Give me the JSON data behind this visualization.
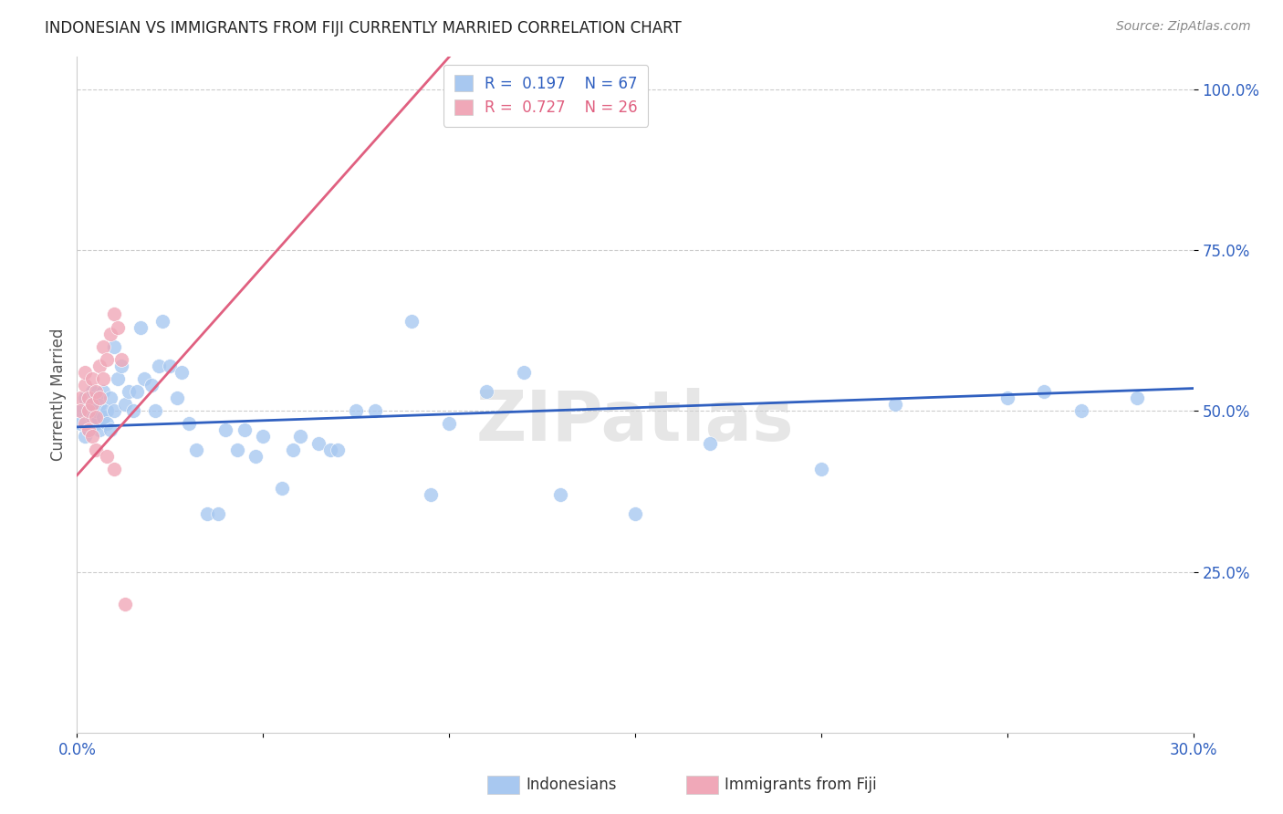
{
  "title": "INDONESIAN VS IMMIGRANTS FROM FIJI CURRENTLY MARRIED CORRELATION CHART",
  "source": "Source: ZipAtlas.com",
  "ylabel": "Currently Married",
  "xlabel_indonesians": "Indonesians",
  "xlabel_fiji": "Immigrants from Fiji",
  "xlim": [
    0.0,
    0.3
  ],
  "ylim": [
    0.0,
    1.05
  ],
  "yticks": [
    0.25,
    0.5,
    0.75,
    1.0
  ],
  "ytick_labels": [
    "25.0%",
    "50.0%",
    "75.0%",
    "100.0%"
  ],
  "xticks": [
    0.0,
    0.05,
    0.1,
    0.15,
    0.2,
    0.25,
    0.3
  ],
  "xtick_labels": [
    "0.0%",
    "",
    "",
    "",
    "",
    "",
    "30.0%"
  ],
  "legend_r_blue": "R =  0.197",
  "legend_n_blue": "N = 67",
  "legend_r_pink": "R =  0.727",
  "legend_n_pink": "N = 26",
  "blue_color": "#A8C8F0",
  "pink_color": "#F0A8B8",
  "line_blue_color": "#3060C0",
  "line_pink_color": "#E06080",
  "watermark": "ZIPatlas",
  "indo_x": [
    0.001,
    0.001,
    0.002,
    0.002,
    0.003,
    0.003,
    0.004,
    0.004,
    0.005,
    0.005,
    0.005,
    0.006,
    0.006,
    0.007,
    0.007,
    0.008,
    0.008,
    0.009,
    0.009,
    0.01,
    0.01,
    0.011,
    0.012,
    0.013,
    0.014,
    0.015,
    0.016,
    0.017,
    0.018,
    0.02,
    0.021,
    0.022,
    0.023,
    0.025,
    0.027,
    0.028,
    0.03,
    0.032,
    0.035,
    0.038,
    0.04,
    0.043,
    0.045,
    0.048,
    0.05,
    0.055,
    0.058,
    0.06,
    0.065,
    0.068,
    0.07,
    0.075,
    0.08,
    0.09,
    0.095,
    0.1,
    0.11,
    0.12,
    0.13,
    0.15,
    0.17,
    0.2,
    0.22,
    0.25,
    0.26,
    0.27,
    0.285
  ],
  "indo_y": [
    0.5,
    0.48,
    0.52,
    0.46,
    0.51,
    0.47,
    0.49,
    0.53,
    0.48,
    0.5,
    0.52,
    0.47,
    0.51,
    0.49,
    0.53,
    0.5,
    0.48,
    0.52,
    0.47,
    0.6,
    0.5,
    0.55,
    0.57,
    0.51,
    0.53,
    0.5,
    0.53,
    0.63,
    0.55,
    0.54,
    0.5,
    0.57,
    0.64,
    0.57,
    0.52,
    0.56,
    0.48,
    0.44,
    0.34,
    0.34,
    0.47,
    0.44,
    0.47,
    0.43,
    0.46,
    0.38,
    0.44,
    0.46,
    0.45,
    0.44,
    0.44,
    0.5,
    0.5,
    0.64,
    0.37,
    0.48,
    0.53,
    0.56,
    0.37,
    0.34,
    0.45,
    0.41,
    0.51,
    0.52,
    0.53,
    0.5,
    0.52
  ],
  "fiji_x": [
    0.001,
    0.001,
    0.002,
    0.002,
    0.002,
    0.003,
    0.003,
    0.003,
    0.004,
    0.004,
    0.004,
    0.005,
    0.005,
    0.005,
    0.006,
    0.006,
    0.007,
    0.007,
    0.008,
    0.008,
    0.009,
    0.01,
    0.01,
    0.011,
    0.012,
    0.013
  ],
  "fiji_y": [
    0.52,
    0.5,
    0.54,
    0.48,
    0.56,
    0.52,
    0.5,
    0.47,
    0.55,
    0.51,
    0.46,
    0.53,
    0.49,
    0.44,
    0.57,
    0.52,
    0.55,
    0.6,
    0.58,
    0.43,
    0.62,
    0.65,
    0.41,
    0.63,
    0.58,
    0.2
  ]
}
